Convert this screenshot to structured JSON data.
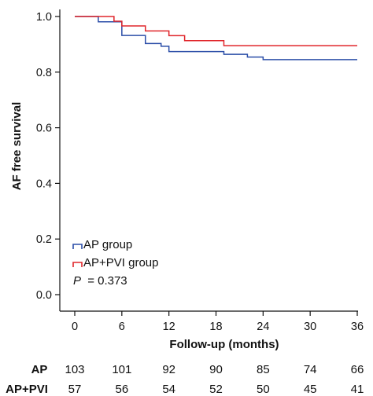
{
  "chart_data": {
    "type": "line",
    "subtype": "kaplan-meier step curve",
    "ylabel": "AF free survival",
    "xlabel": "Follow-up (months)",
    "xlim": [
      0,
      36
    ],
    "ylim": [
      0.0,
      1.0
    ],
    "xticks": [
      0,
      6,
      12,
      18,
      24,
      30,
      36
    ],
    "yticks": [
      0.0,
      0.2,
      0.4,
      0.6,
      0.8,
      1.0
    ],
    "ytick_labels": [
      "0.0",
      "0.2",
      "0.4",
      "0.6",
      "0.8",
      "1.0"
    ],
    "grid": false,
    "legend_position": "bottom-left",
    "series": [
      {
        "name": "AP group",
        "color": "#2b4ea8",
        "steps": [
          {
            "x": 0,
            "y": 1.0
          },
          {
            "x": 3,
            "y": 0.981
          },
          {
            "x": 6,
            "y": 0.932
          },
          {
            "x": 9,
            "y": 0.903
          },
          {
            "x": 11,
            "y": 0.893
          },
          {
            "x": 12,
            "y": 0.874
          },
          {
            "x": 19,
            "y": 0.864
          },
          {
            "x": 22,
            "y": 0.854
          },
          {
            "x": 24,
            "y": 0.845
          },
          {
            "x": 36,
            "y": 0.845
          }
        ]
      },
      {
        "name": "AP+PVI  group",
        "color": "#e0262b",
        "steps": [
          {
            "x": 0,
            "y": 1.0
          },
          {
            "x": 5,
            "y": 0.983
          },
          {
            "x": 6,
            "y": 0.966
          },
          {
            "x": 9,
            "y": 0.948
          },
          {
            "x": 12,
            "y": 0.931
          },
          {
            "x": 14,
            "y": 0.913
          },
          {
            "x": 19,
            "y": 0.895
          },
          {
            "x": 36,
            "y": 0.895
          }
        ]
      }
    ],
    "annotation": {
      "p_label": "P",
      "p_value": "= 0.373"
    },
    "risk_table": {
      "rows": [
        {
          "label": "AP",
          "values": [
            "103",
            "101",
            "92",
            "90",
            "85",
            "74",
            "66"
          ]
        },
        {
          "label": "AP+PVI",
          "values": [
            "57",
            "56",
            "54",
            "52",
            "50",
            "45",
            "41"
          ]
        }
      ]
    }
  }
}
